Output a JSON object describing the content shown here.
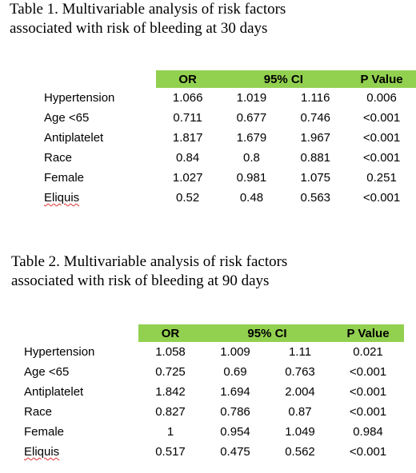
{
  "table1": {
    "title_line1": "Table 1. Multivariable analysis of risk factors",
    "title_line2": "associated with risk of bleeding at 30 days",
    "headers": {
      "or": "OR",
      "ci": "95% CI",
      "p": "P Value"
    },
    "rows": [
      {
        "factor": "Hypertension",
        "or": "1.066",
        "ci_low": "1.019",
        "ci_high": "1.116",
        "p": "0.006"
      },
      {
        "factor": "Age <65",
        "or": "0.711",
        "ci_low": "0.677",
        "ci_high": "0.746",
        "p": "<0.001"
      },
      {
        "factor": "Antiplatelet",
        "or": "1.817",
        "ci_low": "1.679",
        "ci_high": "1.967",
        "p": "<0.001"
      },
      {
        "factor": "Race",
        "or": "0.84",
        "ci_low": "0.8",
        "ci_high": "0.881",
        "p": "<0.001"
      },
      {
        "factor": "Female",
        "or": "1.027",
        "ci_low": "0.981",
        "ci_high": "1.075",
        "p": "0.251"
      },
      {
        "factor": "Eliquis",
        "or": "0.52",
        "ci_low": "0.48",
        "ci_high": "0.563",
        "p": "<0.001"
      }
    ]
  },
  "table2": {
    "title_line1": "Table 2.  Multivariable analysis of risk factors",
    "title_line2": "associated with risk of bleeding at 90 days",
    "headers": {
      "or": "OR",
      "ci": "95% CI",
      "p": "P Value"
    },
    "rows": [
      {
        "factor": "Hypertension",
        "or": "1.058",
        "ci_low": "1.009",
        "ci_high": "1.11",
        "p": "0.021"
      },
      {
        "factor": "Age <65",
        "or": "0.725",
        "ci_low": "0.69",
        "ci_high": "0.763",
        "p": "<0.001"
      },
      {
        "factor": "Antiplatelet",
        "or": "1.842",
        "ci_low": "1.694",
        "ci_high": "2.004",
        "p": "<0.001"
      },
      {
        "factor": "Race",
        "or": "0.827",
        "ci_low": "0.786",
        "ci_high": "0.87",
        "p": "<0.001"
      },
      {
        "factor": "Female",
        "or": "1",
        "ci_low": "0.954",
        "ci_high": "1.049",
        "p": "0.984"
      },
      {
        "factor": "Eliquis",
        "or": "0.517",
        "ci_low": "0.475",
        "ci_high": "0.562",
        "p": "<0.001"
      }
    ]
  },
  "colors": {
    "header_fill": "#92d050",
    "spellcheck_underline": "#e03030"
  }
}
